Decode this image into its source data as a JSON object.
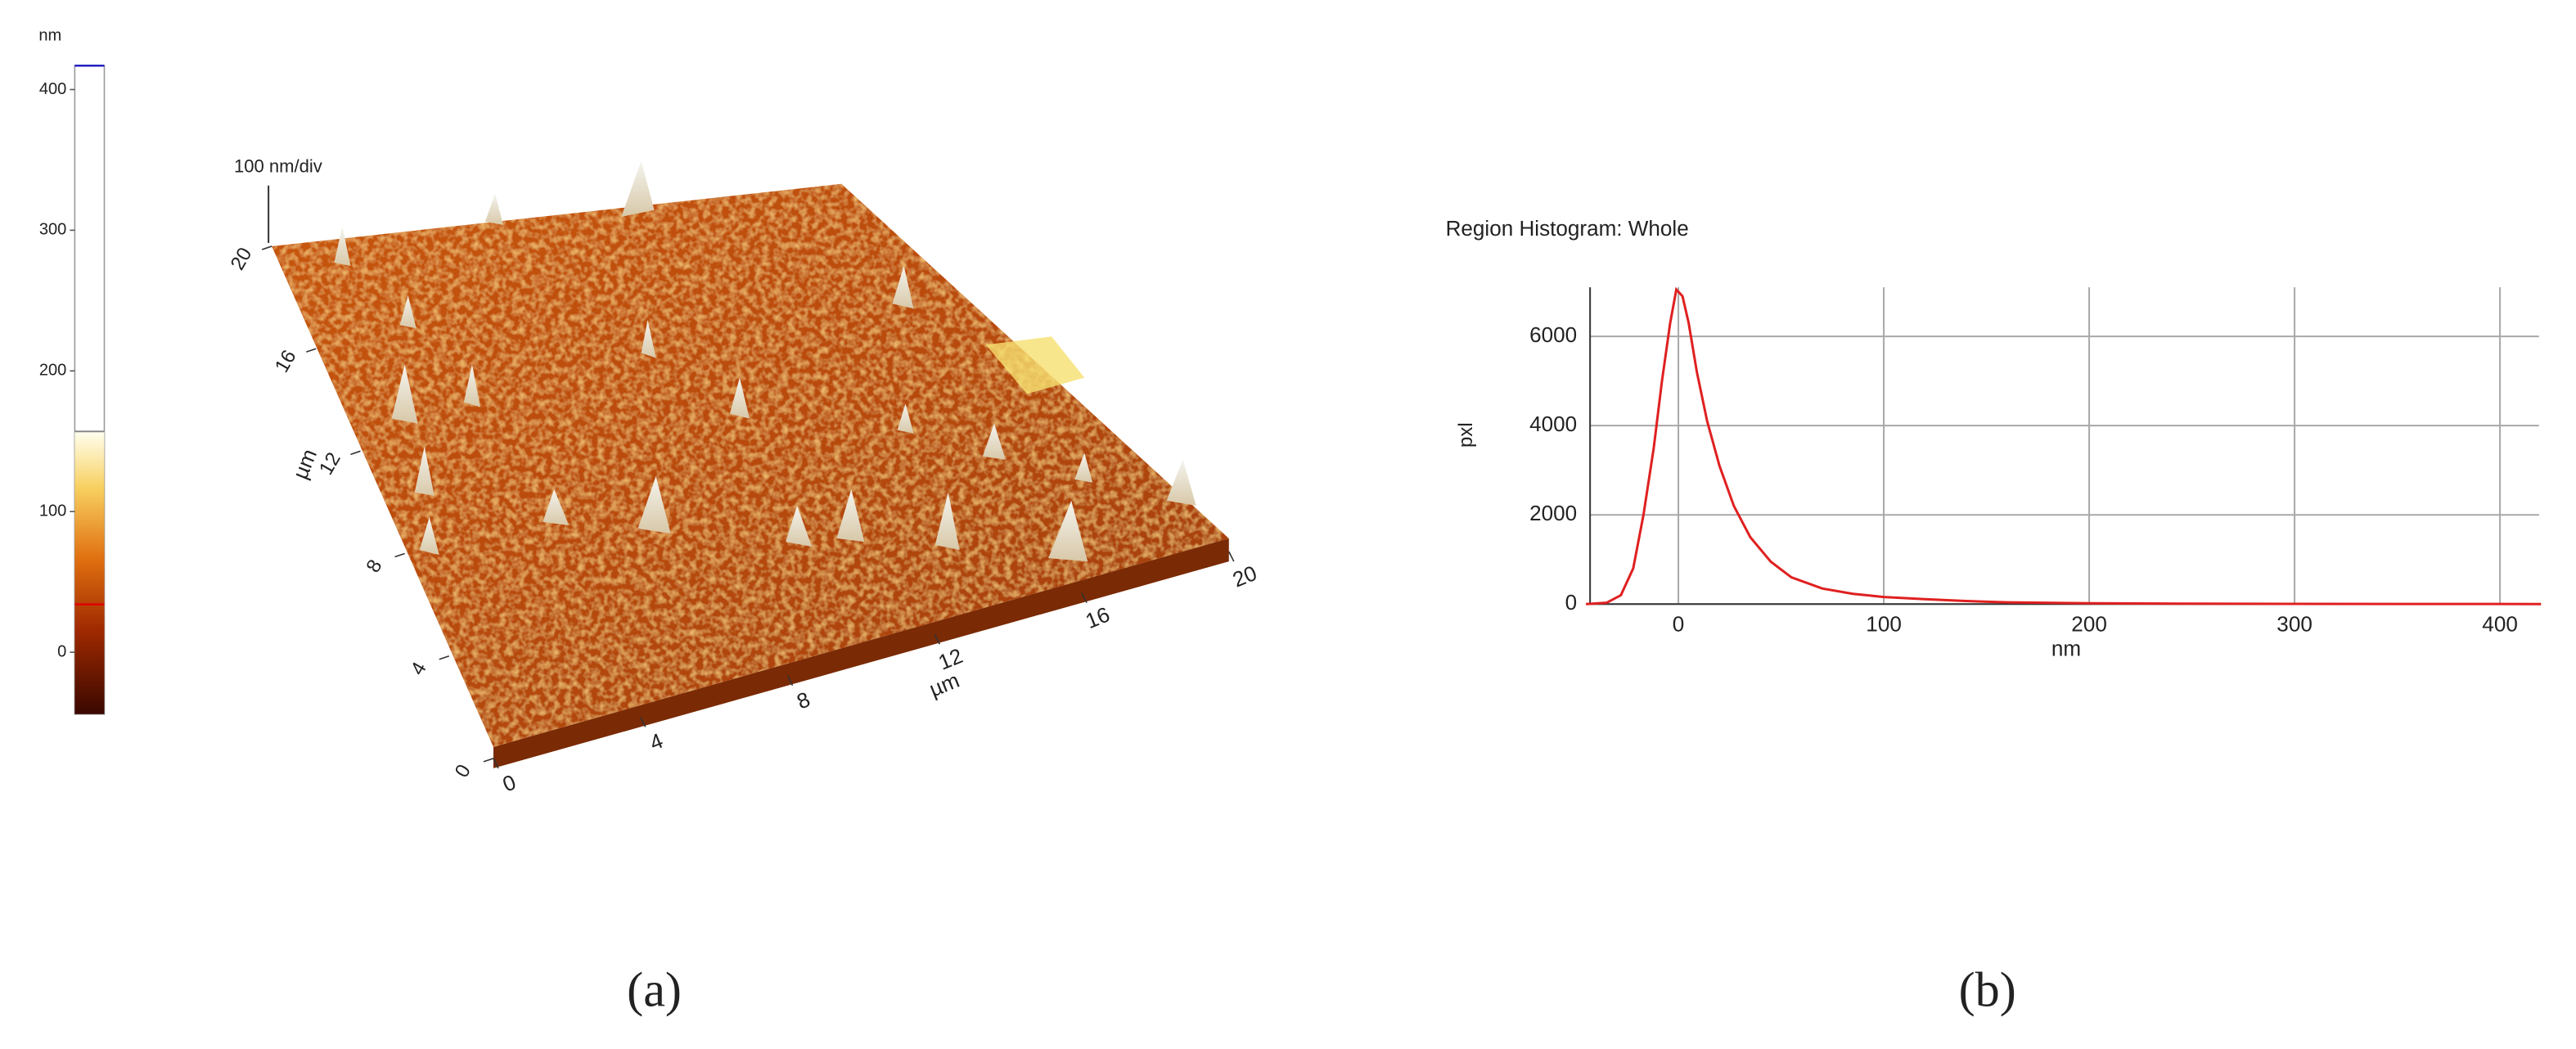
{
  "chart_data": [
    {
      "type": "surface3d",
      "label": "(a)",
      "cunit": "nm",
      "clim": [
        -44,
        417
      ],
      "cticks": [
        0,
        100,
        200,
        300,
        400
      ],
      "color_range": [
        -44,
        157
      ],
      "markers": [
        {
          "value": 34,
          "color": "#e00000"
        },
        {
          "value": 417,
          "color": "#2020c0"
        }
      ],
      "z_scale": "100 nm/div",
      "xlabel": "µm",
      "ylabel": "µm",
      "xlim": [
        0,
        20
      ],
      "xticks": [
        0,
        4,
        8,
        12,
        16,
        20
      ],
      "ylim": [
        0,
        20
      ],
      "yticks": [
        0,
        4,
        8,
        12,
        16,
        20
      ]
    },
    {
      "type": "line",
      "label": "(b)",
      "title": "Region Histogram: Whole",
      "xlabel": "nm",
      "ylabel": "pxl",
      "color": "#e02020",
      "x": [
        -45,
        -35,
        -28,
        -22,
        -17,
        -12,
        -8,
        -4,
        -1,
        2,
        5,
        9,
        14,
        20,
        27,
        35,
        45,
        55,
        70,
        85,
        100,
        120,
        140,
        160,
        200,
        250,
        300,
        350,
        420
      ],
      "values": [
        0,
        30,
        200,
        800,
        2000,
        3500,
        5000,
        6300,
        7050,
        6900,
        6300,
        5200,
        4100,
        3100,
        2200,
        1500,
        950,
        600,
        350,
        230,
        160,
        110,
        70,
        40,
        20,
        10,
        5,
        3,
        2
      ],
      "xlim": [
        -43,
        419
      ],
      "xticks": [
        0,
        100,
        200,
        300,
        400
      ],
      "ylim": [
        0,
        7100
      ],
      "yticks": [
        0,
        2000,
        4000,
        6000
      ],
      "grid": true
    }
  ]
}
